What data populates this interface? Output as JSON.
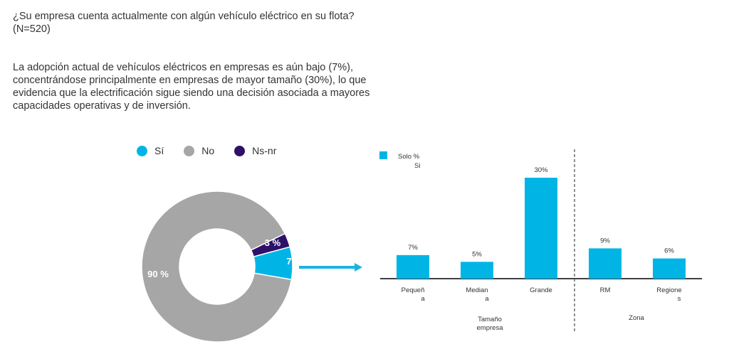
{
  "question": {
    "line1": "¿Su empresa cuenta actualmente con algún vehículo eléctrico en su flota?",
    "line2": "(N=520)"
  },
  "summary": {
    "line1": "La adopción actual de vehículos eléctricos en empresas es aún bajo (7%),",
    "line2": "concentrándose principalmente en empresas de mayor tamaño (30%), lo que",
    "line3": "evidencia que la electrificación sigue siendo una decisión asociada a mayores",
    "line4": "capacidades operativas y de inversión."
  },
  "colors": {
    "si": "#00b5e6",
    "no": "#a6a6a6",
    "nsnr": "#2d1068",
    "arrow": "#1ab3e0",
    "divider": "#555555"
  },
  "chart_data": [
    {
      "type": "pie",
      "variant": "donut",
      "legend": [
        {
          "key": "si",
          "label": "Sí"
        },
        {
          "key": "no",
          "label": "No"
        },
        {
          "key": "nsnr",
          "label": "Ns-nr"
        }
      ],
      "slices": [
        {
          "key": "si",
          "value": 7,
          "label": "7"
        },
        {
          "key": "nsnr",
          "value": 3,
          "label": "3 %"
        },
        {
          "key": "no",
          "value": 90,
          "label": "90 %"
        }
      ]
    },
    {
      "type": "bar",
      "legend": {
        "line1": "Solo %",
        "line2": "Si"
      },
      "categories": [
        {
          "lines": [
            "Pequeñ",
            "a"
          ],
          "value": 7,
          "label": "7%"
        },
        {
          "lines": [
            "Median",
            "a"
          ],
          "value": 5,
          "label": "5%"
        },
        {
          "lines": [
            "Grande"
          ],
          "value": 30,
          "label": "30%"
        },
        {
          "lines": [
            "RM"
          ],
          "value": 9,
          "label": "9%"
        },
        {
          "lines": [
            "Regione",
            "s"
          ],
          "value": 6,
          "label": "6%"
        }
      ],
      "groups": [
        {
          "lines": [
            "Tamaño",
            "empresa"
          ]
        },
        {
          "lines": [
            "Zona"
          ]
        }
      ],
      "ylim": [
        0,
        30
      ]
    }
  ]
}
